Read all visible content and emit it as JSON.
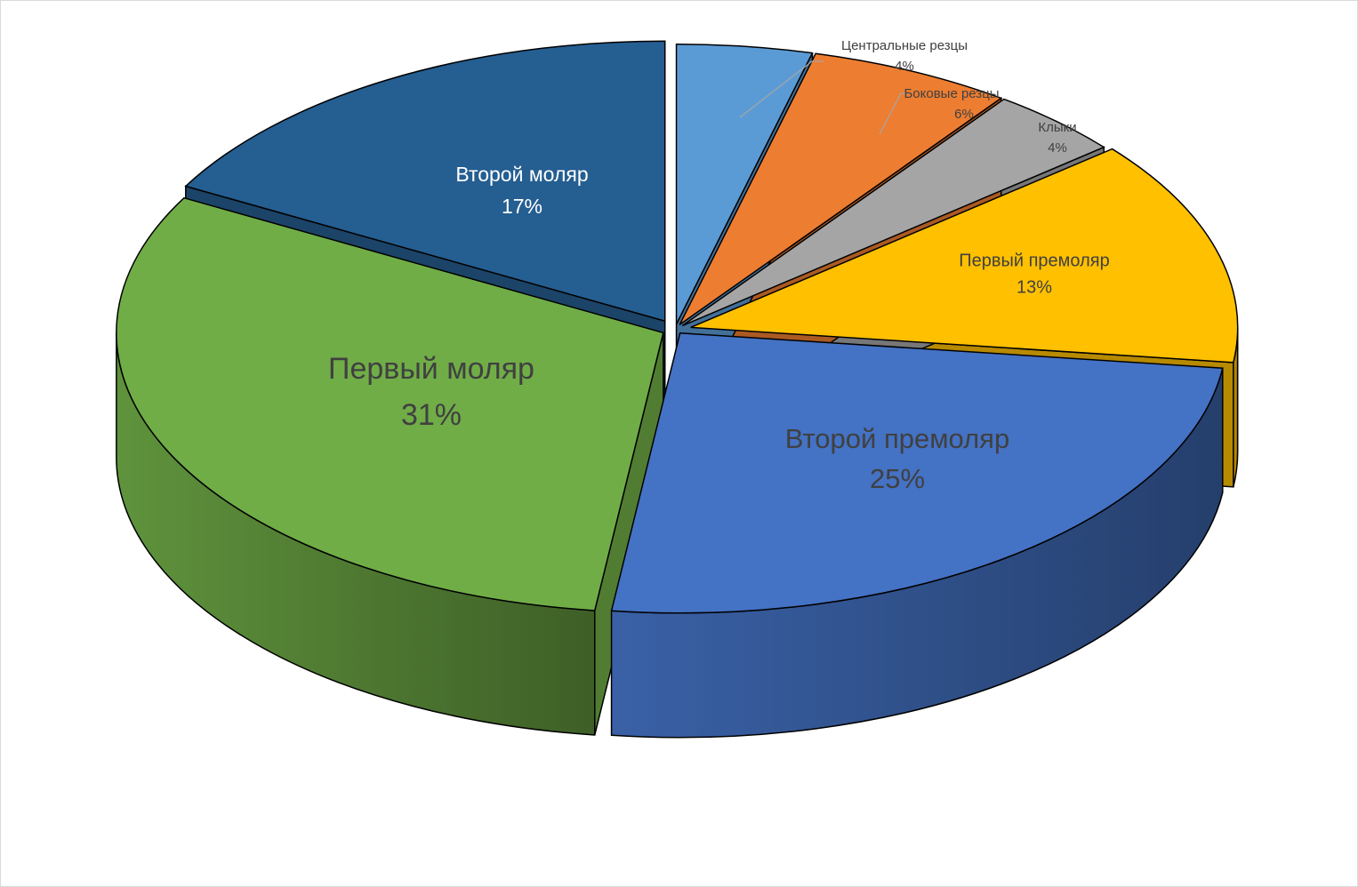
{
  "chart_data": {
    "type": "pie",
    "variant": "3d-exploded",
    "title": "",
    "slices": [
      {
        "label": "Центральные резцы",
        "value": 4,
        "value_label": "4%",
        "color": "#5b9bd5",
        "label_style": "callout"
      },
      {
        "label": "Боковые резцы",
        "value": 6,
        "value_label": "6%",
        "color": "#ed7d31",
        "label_style": "callout"
      },
      {
        "label": "Клыки",
        "value": 4,
        "value_label": "4%",
        "color": "#a5a5a5",
        "label_style": "callout"
      },
      {
        "label": "Первый премоляр",
        "value": 13,
        "value_label": "13%",
        "color": "#ffc000",
        "label_style": "inside"
      },
      {
        "label": "Второй премоляр",
        "value": 25,
        "value_label": "25%",
        "color": "#4472c4",
        "label_style": "inside"
      },
      {
        "label": "Первый моляр",
        "value": 31,
        "value_label": "31%",
        "color": "#70ad47",
        "label_style": "inside"
      },
      {
        "label": "Второй моляр",
        "value": 17,
        "value_label": "17%",
        "color": "#255e91",
        "label_style": "inside"
      }
    ],
    "legend": "none",
    "label_colors": {
      "dark": "#404040",
      "light": "#ffffff",
      "callout_line": "#a6a6a6"
    }
  }
}
